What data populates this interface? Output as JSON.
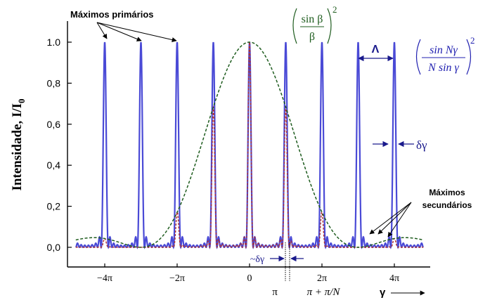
{
  "chart_data": {
    "type": "line",
    "ylabel": "Intensidade, I/I",
    "ylabel_sub": "0",
    "xlabel": "γ",
    "ylim": [
      0,
      1.05
    ],
    "xlim_pi": [
      -4.8,
      4.8
    ],
    "y_ticks": [
      {
        "v": 0.0,
        "label": "0,0"
      },
      {
        "v": 0.2,
        "label": "0,2"
      },
      {
        "v": 0.4,
        "label": "0,4"
      },
      {
        "v": 0.6,
        "label": "0,6"
      },
      {
        "v": 0.8,
        "label": "0,8"
      },
      {
        "v": 1.0,
        "label": "1.0"
      }
    ],
    "x_ticks": [
      {
        "v": -4,
        "label": "−4π"
      },
      {
        "v": -2,
        "label": "−2π"
      },
      {
        "v": 0,
        "label": "0"
      },
      {
        "v": 2,
        "label": "2π"
      },
      {
        "v": 4,
        "label": "4π"
      }
    ],
    "series": [
      {
        "key": "grating",
        "color": "#4a4ad6",
        "style": "solid",
        "formula_text": "sin Nγ / N sin γ",
        "N": 10,
        "primary_max_gamma_pi": [
          -4,
          -3,
          -2,
          -1,
          0,
          1,
          2,
          3,
          4
        ]
      },
      {
        "key": "envelope",
        "color": "#1e5c1e",
        "style": "dashed",
        "formula_text": "sin β / β",
        "gamma_to_beta": 0.3333
      },
      {
        "key": "product",
        "color": "#b03030",
        "style": "dashed"
      }
    ],
    "formulas": {
      "envelope": {
        "num": "sin β",
        "den": "β",
        "exp": "2"
      },
      "grating": {
        "num": "sin Nγ",
        "den": "N sin γ",
        "exp": "2"
      }
    },
    "annotations": {
      "primary_maxima": "Máximos primários",
      "secondary_maxima_line1": "Máximos",
      "secondary_maxima_line2": "secundários",
      "period": "Λ",
      "width": "δγ",
      "approx_width": "~δγ",
      "pi_label": "π",
      "pi_plus": "π + π/N"
    },
    "grid": false,
    "legend": "none"
  }
}
